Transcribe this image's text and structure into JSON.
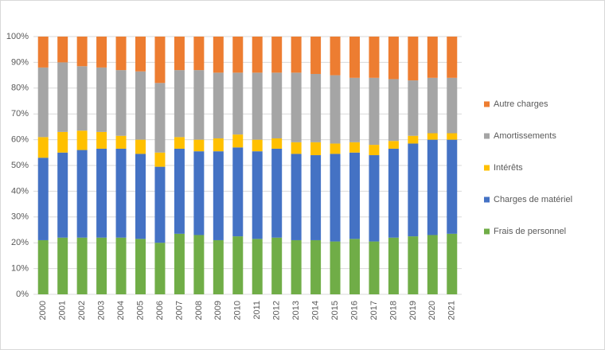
{
  "chart_data": {
    "type": "stacked_bar_100",
    "categories": [
      "2000",
      "2001",
      "2002",
      "2003",
      "2004",
      "2005",
      "2006",
      "2007",
      "2008",
      "2009",
      "2010",
      "2011",
      "2012",
      "2013",
      "2014",
      "2015",
      "2016",
      "2017",
      "2018",
      "2019",
      "2020",
      "2021"
    ],
    "series": [
      {
        "name": "Frais de personnel",
        "color": "#70ad47",
        "values": [
          21,
          22,
          22,
          22,
          22,
          21.5,
          20,
          23.5,
          23,
          21,
          22.5,
          21.5,
          22,
          21,
          21,
          20.5,
          21.5,
          20.5,
          22,
          22.5,
          23,
          23.5
        ]
      },
      {
        "name": "Charges de matériel",
        "color": "#4472c4",
        "values": [
          32,
          33,
          34,
          34.5,
          34.5,
          33,
          29.5,
          33,
          32.5,
          34.5,
          34.5,
          34,
          34.5,
          33.5,
          33,
          34,
          33.5,
          33.5,
          34.5,
          36,
          37,
          36.5
        ]
      },
      {
        "name": "Intérêts",
        "color": "#ffc000",
        "values": [
          8,
          8,
          7.5,
          6.5,
          5,
          5.5,
          5.5,
          4.5,
          4.5,
          5,
          5,
          4.5,
          4,
          4.5,
          5,
          4,
          4,
          4,
          3,
          3,
          2.5,
          2.5
        ]
      },
      {
        "name": "Amortissements",
        "color": "#a5a5a5",
        "values": [
          27,
          27,
          25,
          25,
          25.5,
          26.5,
          27,
          26,
          27,
          25.5,
          24,
          26,
          25.5,
          27,
          26.5,
          26.5,
          25,
          26,
          24,
          21.5,
          21.5,
          21.5
        ]
      },
      {
        "name": "Autre charges",
        "color": "#ed7d31",
        "values": [
          12,
          10,
          11.5,
          12,
          13,
          13.5,
          18,
          13,
          13,
          14,
          14,
          14,
          14,
          14,
          14.5,
          15,
          16,
          16,
          16.5,
          17,
          16,
          16
        ]
      }
    ],
    "ylim": [
      0,
      100
    ],
    "yticks": [
      {
        "value": 0,
        "label": "0%"
      },
      {
        "value": 10,
        "label": "10%"
      },
      {
        "value": 20,
        "label": "20%"
      },
      {
        "value": 30,
        "label": "30%"
      },
      {
        "value": 40,
        "label": "40%"
      },
      {
        "value": 50,
        "label": "50%"
      },
      {
        "value": 60,
        "label": "60%"
      },
      {
        "value": 70,
        "label": "70%"
      },
      {
        "value": 80,
        "label": "80%"
      },
      {
        "value": 90,
        "label": "90%"
      },
      {
        "value": 100,
        "label": "100%"
      }
    ],
    "grid": true,
    "legend": "right"
  }
}
